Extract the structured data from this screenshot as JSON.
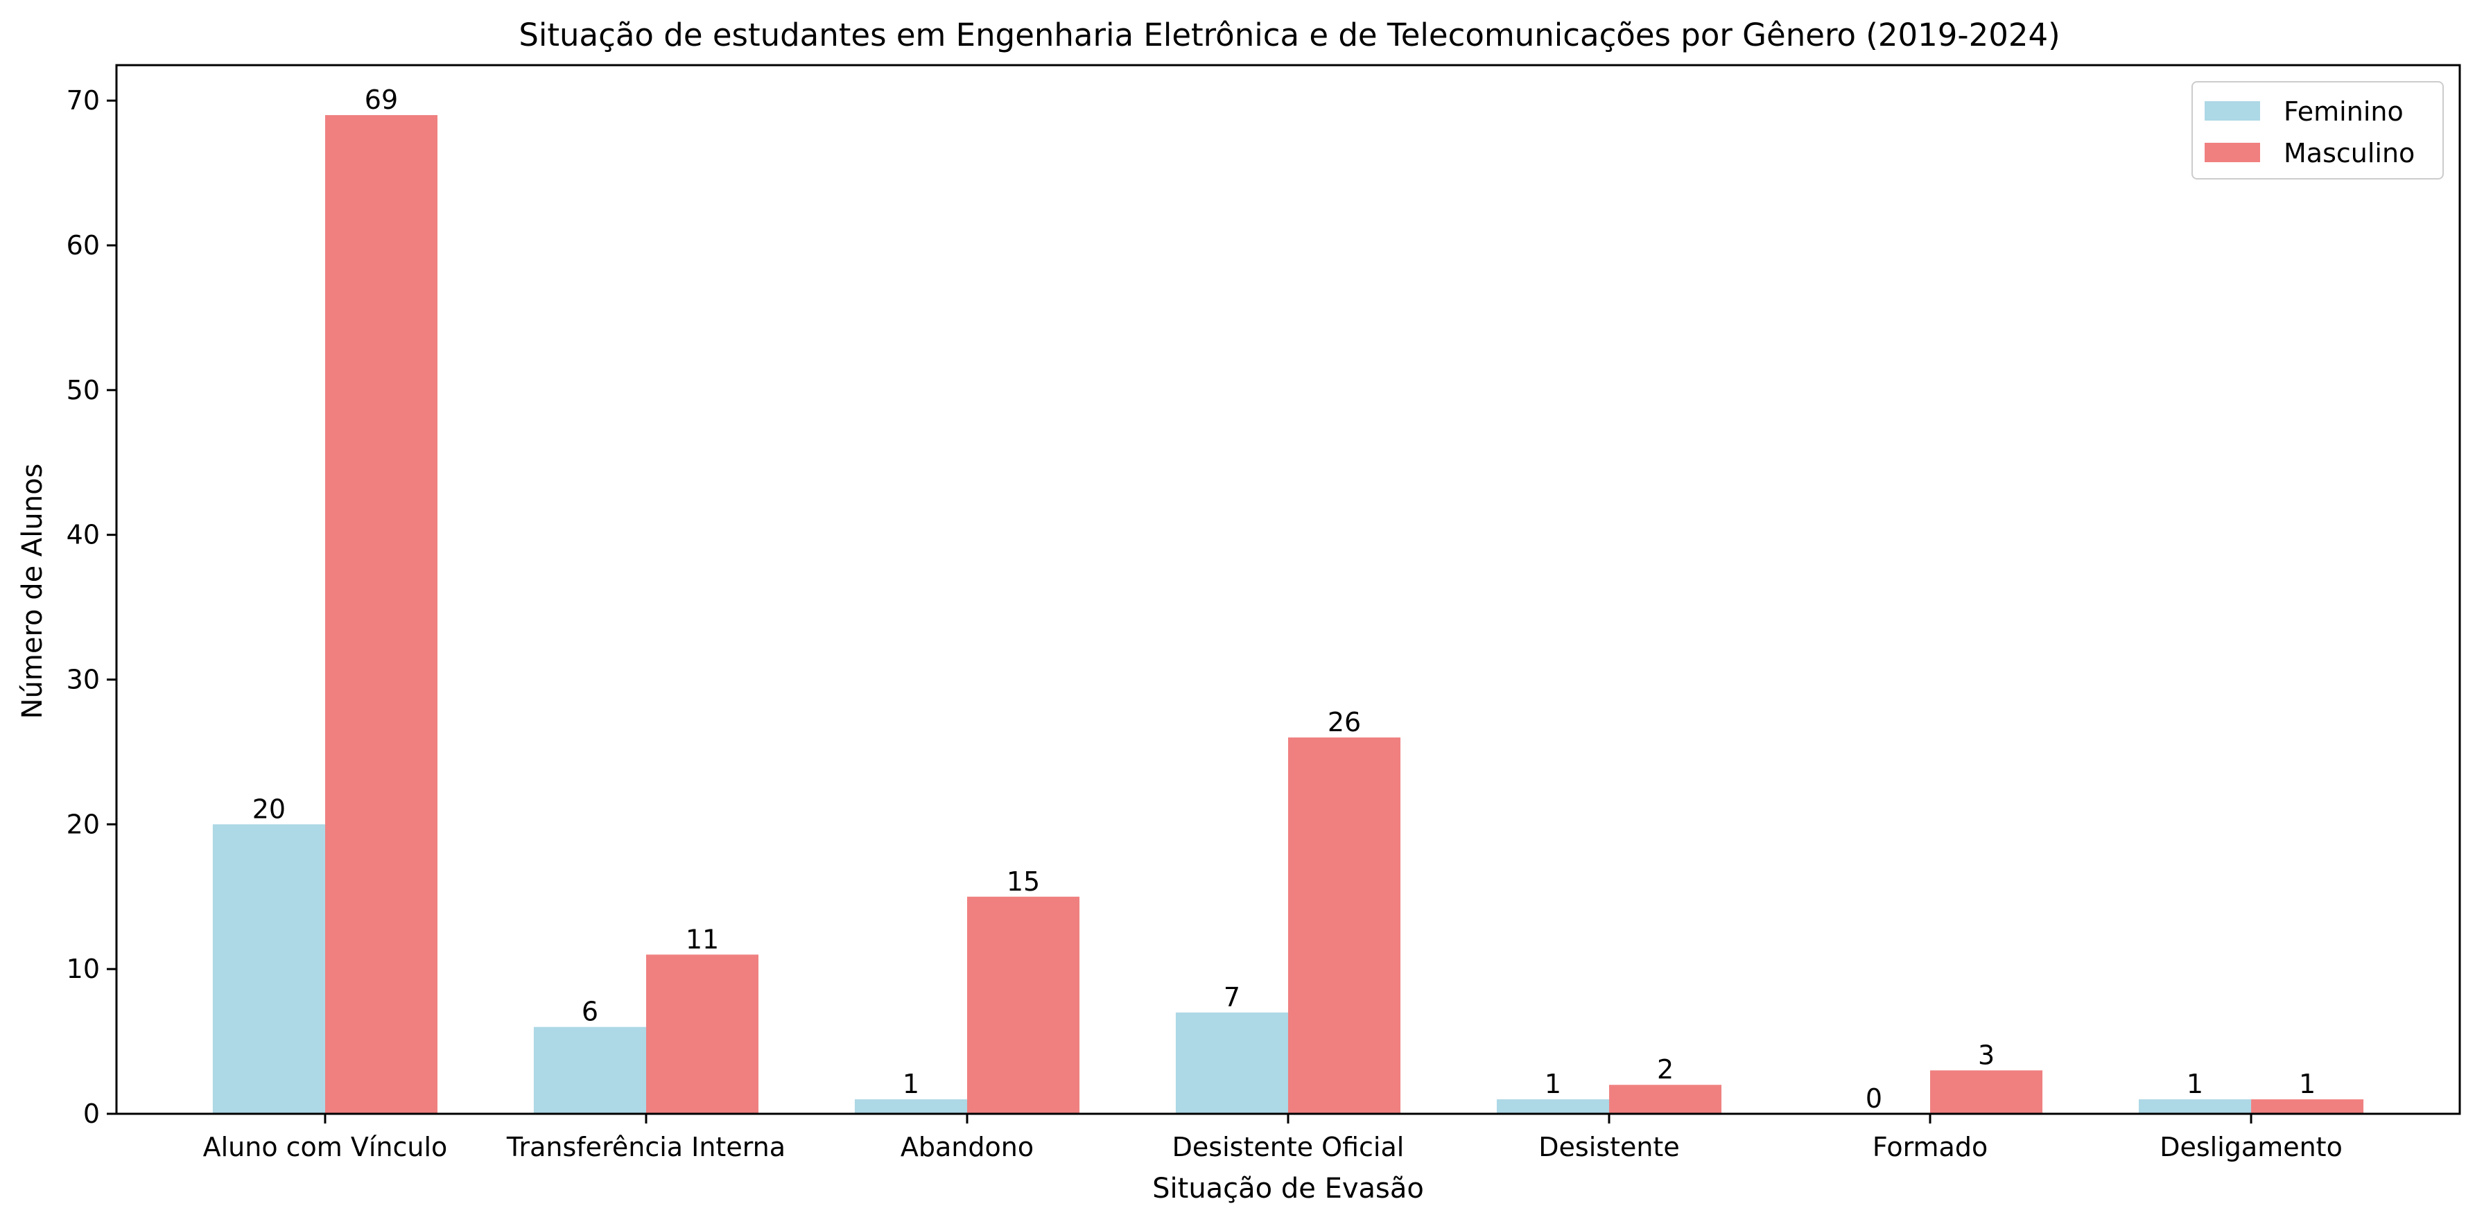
{
  "chart_data": {
    "type": "bar",
    "title": "Situação de estudantes em Engenharia Eletrônica e de Telecomunicações por Gênero (2019-2024)",
    "xlabel": "Situação de Evasão",
    "ylabel": "Número de Alunos",
    "categories": [
      "Aluno com Vínculo",
      "Transferência Interna",
      "Abandono",
      "Desistente Oficial",
      "Desistente",
      "Formado",
      "Desligamento"
    ],
    "series": [
      {
        "name": "Feminino",
        "color": "#add8e6",
        "values": [
          20,
          6,
          1,
          7,
          1,
          0,
          1
        ]
      },
      {
        "name": "Masculino",
        "color": "#f08080",
        "values": [
          69,
          11,
          15,
          26,
          2,
          3,
          1
        ]
      }
    ],
    "ylim": [
      0,
      72.45
    ],
    "yticks": [
      0,
      10,
      20,
      30,
      40,
      50,
      60,
      70
    ],
    "grid": false,
    "legend_position": "top-right"
  }
}
